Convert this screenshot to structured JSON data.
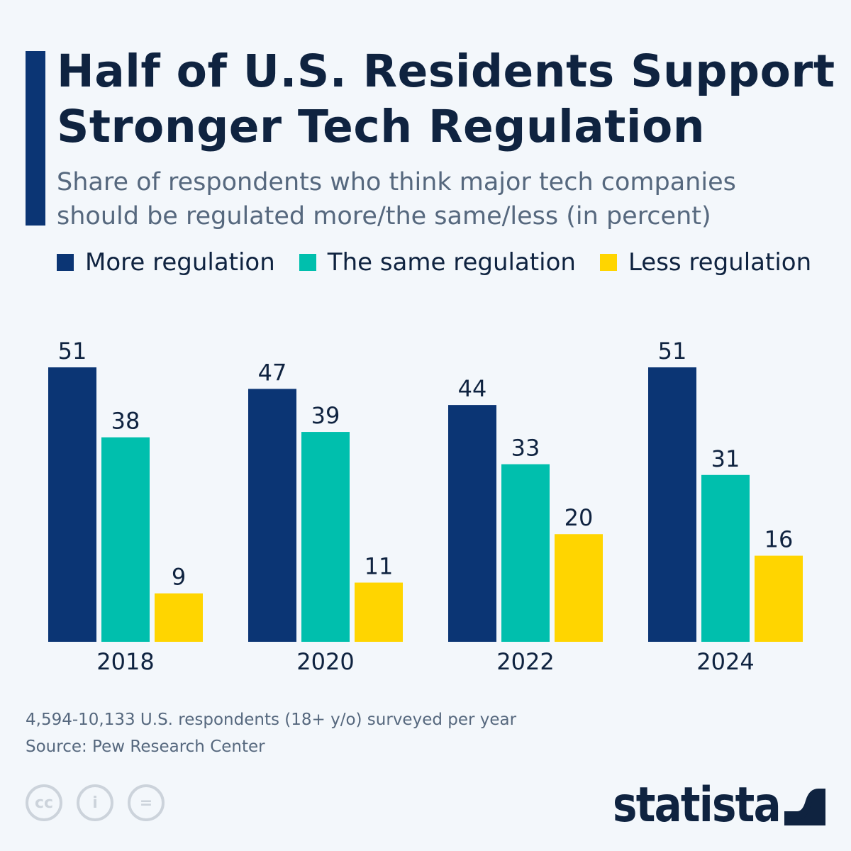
{
  "header": {
    "title_line1": "Half of U.S. Residents Support",
    "title_line2": "Stronger Tech Regulation",
    "subtitle_line1": "Share of respondents who think major tech companies",
    "subtitle_line2": "should be regulated more/the same/less (in percent)"
  },
  "colors": {
    "accent": "#0b3574",
    "more": "#0b3574",
    "same": "#00bfad",
    "less": "#ffd500"
  },
  "chart_data": {
    "type": "bar",
    "categories": [
      "2018",
      "2020",
      "2022",
      "2024"
    ],
    "series": [
      {
        "name": "More regulation",
        "values": [
          51,
          47,
          44,
          51
        ]
      },
      {
        "name": "The same regulation",
        "values": [
          38,
          39,
          33,
          31
        ]
      },
      {
        "name": "Less regulation",
        "values": [
          9,
          11,
          20,
          16
        ]
      }
    ],
    "legend_position": "top-left",
    "grid": false,
    "ylim": [
      0,
      51
    ]
  },
  "footer": {
    "note": "4,594-10,133 U.S. respondents (18+ y/o) surveyed per year",
    "source": "Source: Pew Research Center",
    "license_icons": [
      "cc-icon",
      "attribution-icon",
      "no-derivatives-icon"
    ],
    "brand": "statista"
  }
}
